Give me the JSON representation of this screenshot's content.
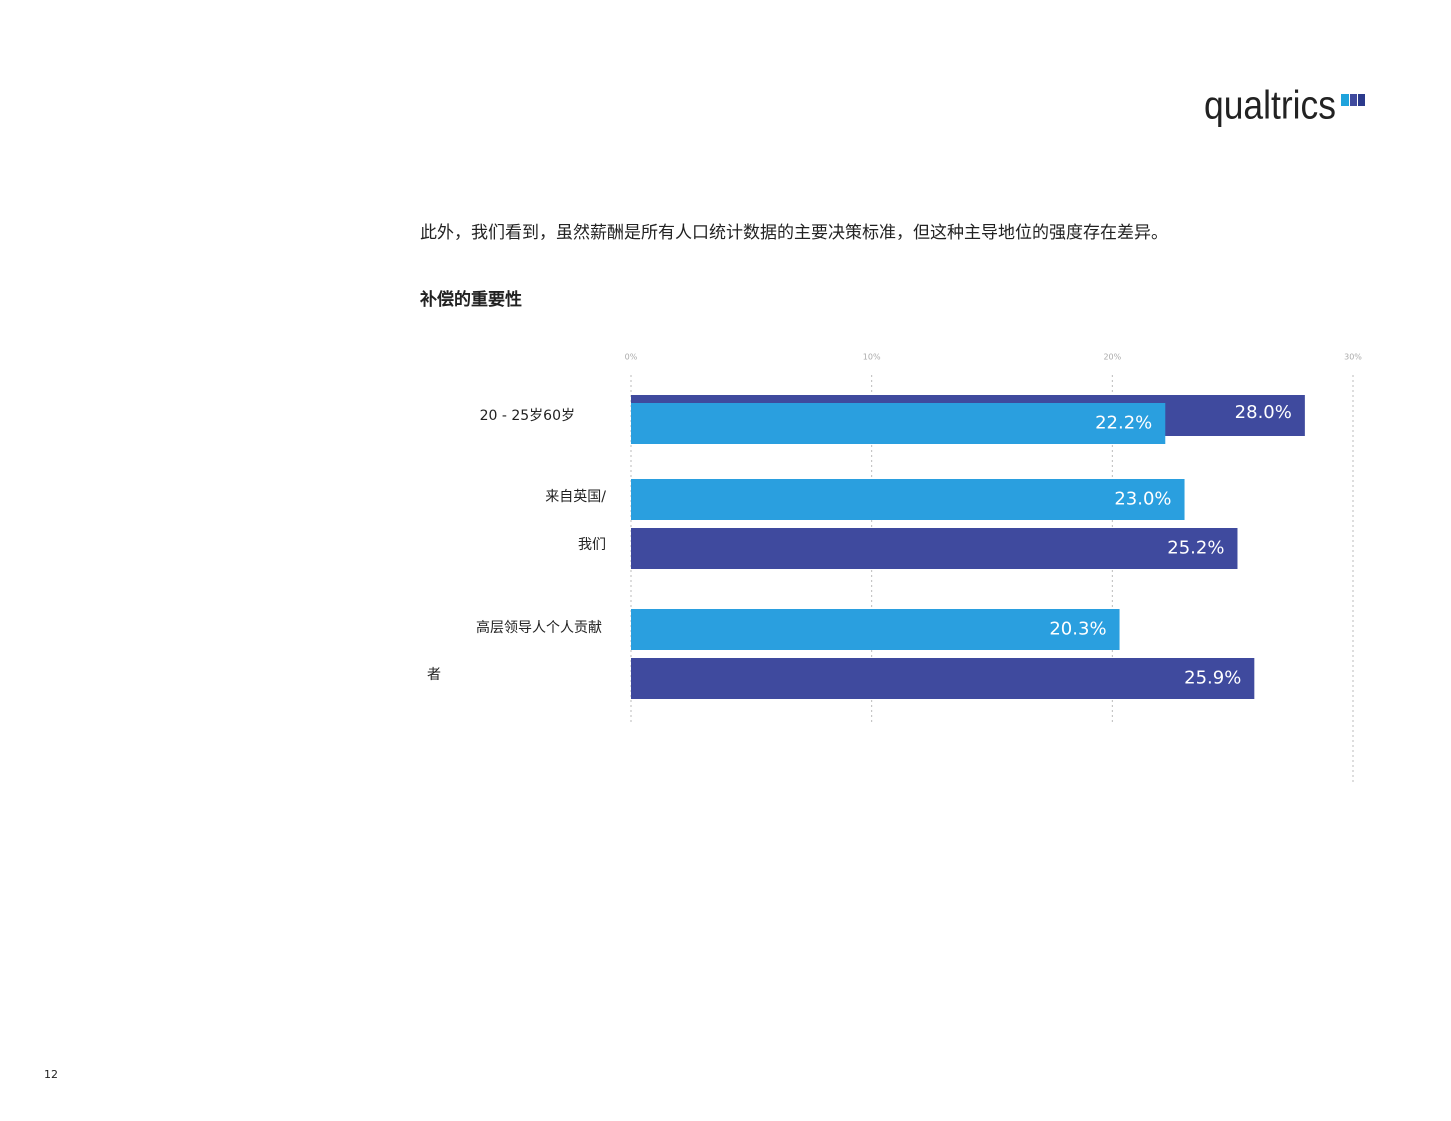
{
  "page": {
    "logo": "qualtrics",
    "intro": "此外，我们看到，虽然薪酬是所有人口统计数据的主要决策标准，但这种主导地位的强度存在差异。",
    "page_number": "12"
  },
  "chart_data": {
    "type": "bar",
    "orientation": "horizontal",
    "title": "补偿的重要性",
    "categories": [
      [
        "20 - 25岁60岁"
      ],
      [
        "来自英国/",
        "我们"
      ],
      [
        "高层领导人个人贡献",
        "者"
      ]
    ],
    "series": [
      {
        "color": "#3f4a9e",
        "values": [
          28.0,
          25.2,
          25.9
        ],
        "value_labels": [
          "28.0%",
          "25.2%",
          "25.9%"
        ]
      },
      {
        "color": "#2a9fdf",
        "values": [
          22.2,
          23.0,
          20.3
        ],
        "value_labels": [
          "22.2%",
          "23.0%",
          "20.3%"
        ]
      }
    ],
    "xlim": [
      0,
      30
    ],
    "xticks": [
      {
        "value": 0,
        "label": "0%"
      },
      {
        "value": 10,
        "label": "10%"
      },
      {
        "value": 20,
        "label": "20%"
      },
      {
        "value": 30,
        "label": "30%"
      }
    ],
    "grid": true
  }
}
